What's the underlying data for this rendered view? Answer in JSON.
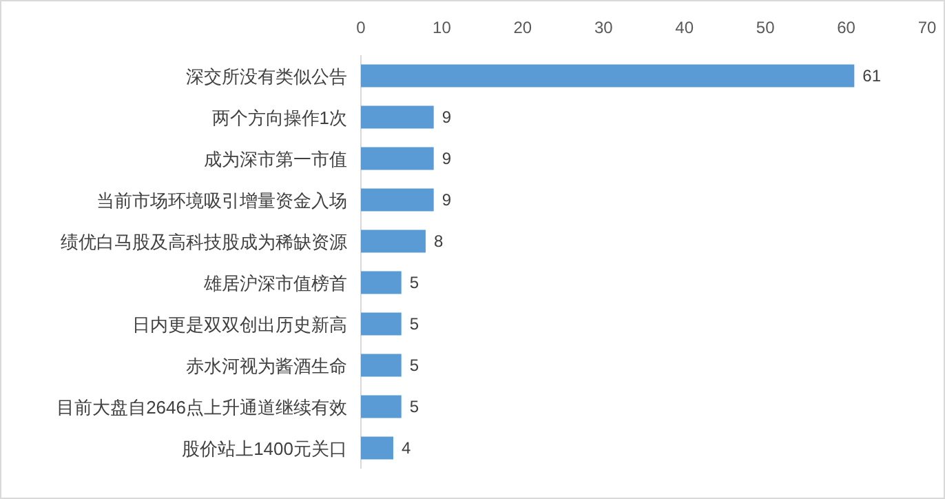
{
  "chart_data": {
    "type": "bar",
    "orientation": "horizontal",
    "categories": [
      "深交所没有类似公告",
      "两个方向操作1次",
      "成为深市第一市值",
      "当前市场环境吸引增量资金入场",
      "绩优白马股及高科技股成为稀缺资源",
      "雄居沪深市值榜首",
      "日内更是双双创出历史新高",
      "赤水河视为酱酒生命",
      "目前大盘自2646点上升通道继续有效",
      "股价站上1400元关口"
    ],
    "values": [
      61,
      9,
      9,
      9,
      8,
      5,
      5,
      5,
      5,
      4
    ],
    "color": "#5b9bd5",
    "xlim": [
      0,
      70
    ],
    "xticks": [
      0,
      10,
      20,
      30,
      40,
      50,
      60,
      70
    ],
    "data_labels": true
  }
}
